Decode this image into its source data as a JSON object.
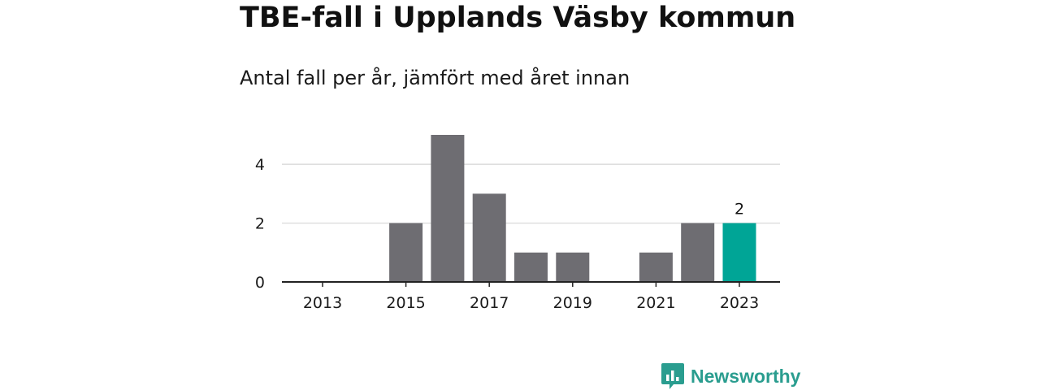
{
  "title": "TBE-fall i Upplands Väsby kommun",
  "subtitle": "Antal fall per år, jämfört med året innan",
  "brand": {
    "name": "Newsworthy",
    "icon": "bar-chart-speech-bubble-icon",
    "color": "#2a9d8f"
  },
  "chart_data": {
    "type": "bar",
    "categories": [
      "2013",
      "2014",
      "2015",
      "2016",
      "2017",
      "2018",
      "2019",
      "2020",
      "2021",
      "2022",
      "2023"
    ],
    "values": [
      0,
      0,
      2,
      5,
      3,
      1,
      1,
      0,
      1,
      2,
      2
    ],
    "x_tick_labels": [
      "2013",
      "2015",
      "2017",
      "2019",
      "2021",
      "2023"
    ],
    "y_ticks": [
      0,
      2,
      4
    ],
    "ylim": [
      0,
      5
    ],
    "grid": true,
    "highlight": {
      "category": "2023",
      "label": "2"
    },
    "colors": {
      "bar": "#6e6d72",
      "highlight": "#00a596",
      "grid": "#d9d9d9",
      "axis": "#222222"
    }
  }
}
